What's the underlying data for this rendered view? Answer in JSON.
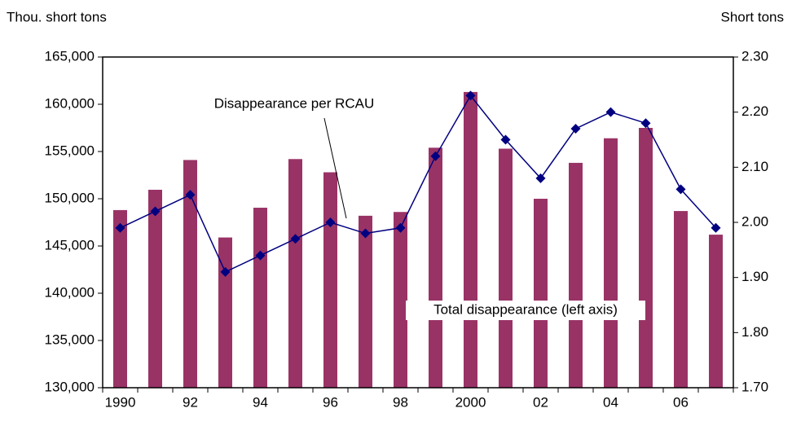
{
  "chart_data": {
    "type": "bar",
    "y_label": "Thou. short tons",
    "y2_label": "Short tons",
    "categories": [
      "1990",
      null,
      "92",
      null,
      "94",
      null,
      "96",
      null,
      "98",
      null,
      "2000",
      null,
      "02",
      null,
      "04",
      null,
      "06",
      null
    ],
    "series": [
      {
        "name": "Total disappearance (left axis)",
        "type": "bar",
        "color": "#993366",
        "values": [
          148800,
          150950,
          154100,
          145900,
          149050,
          154200,
          152800,
          148200,
          148600,
          155400,
          161300,
          155300,
          150000,
          153800,
          156400,
          157500,
          148700,
          146200
        ]
      },
      {
        "name": "Disappearance per RCAU",
        "type": "line",
        "axis": "y2",
        "color": "#000080",
        "values": [
          1.99,
          2.02,
          2.05,
          1.91,
          1.94,
          1.97,
          2.0,
          1.98,
          1.99,
          2.12,
          2.23,
          2.15,
          2.08,
          2.17,
          2.2,
          2.18,
          2.06,
          1.99
        ]
      }
    ],
    "ylim": [
      130000,
      165000
    ],
    "yticks": [
      {
        "value": 130000,
        "label": "130,000"
      },
      {
        "value": 135000,
        "label": "135,000"
      },
      {
        "value": 140000,
        "label": "140,000"
      },
      {
        "value": 145000,
        "label": "145,000"
      },
      {
        "value": 150000,
        "label": "150,000"
      },
      {
        "value": 155000,
        "label": "155,000"
      },
      {
        "value": 160000,
        "label": "160,000"
      },
      {
        "value": 165000,
        "label": "165,000"
      }
    ],
    "y2lim": [
      1.7,
      2.3
    ],
    "y2ticks": [
      {
        "value": 1.7,
        "label": "1.70"
      },
      {
        "value": 1.8,
        "label": "1.80"
      },
      {
        "value": 1.9,
        "label": "1.90"
      },
      {
        "value": 2.0,
        "label": "2.00"
      },
      {
        "value": 2.1,
        "label": "2.10"
      },
      {
        "value": 2.2,
        "label": "2.20"
      },
      {
        "value": 2.3,
        "label": "2.30"
      }
    ],
    "grid": false
  }
}
